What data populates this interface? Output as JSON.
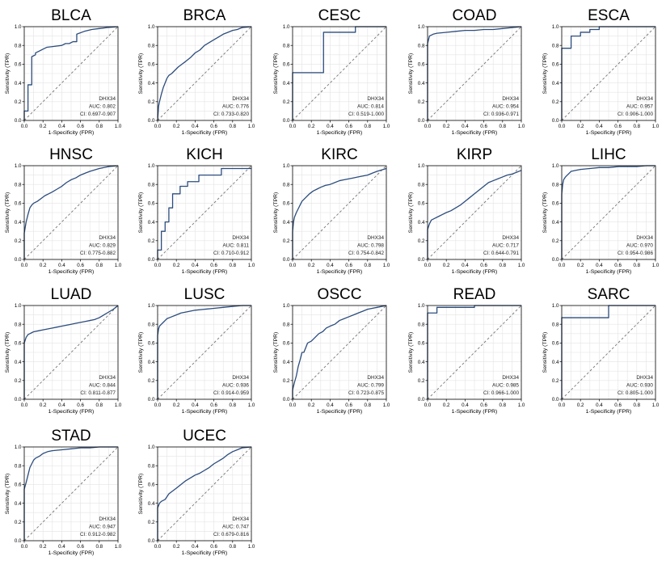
{
  "figure": {
    "axis_ticks": [
      "0.0",
      "0.2",
      "0.4",
      "0.6",
      "0.8",
      "1.0"
    ],
    "colors": {
      "roc": "#2b4c7e",
      "diagonal": "#777777",
      "grid": "#e4e4e4",
      "frame": "#000000"
    }
  },
  "chart_data": [
    {
      "type": "line",
      "title": "BLCA",
      "xlabel": "1-Specificity (FPR)",
      "ylabel": "Sensitivity (TPR)",
      "xlim": [
        0,
        1
      ],
      "ylim": [
        0,
        1
      ],
      "grid": true,
      "legend": [
        "DHX34",
        "AUC: 0.802",
        "CI: 0.697-0.907"
      ],
      "series": [
        {
          "name": "DHX34",
          "x": [
            0,
            0,
            0.04,
            0.04,
            0.08,
            0.08,
            0.12,
            0.12,
            0.16,
            0.2,
            0.24,
            0.32,
            0.4,
            0.44,
            0.48,
            0.52,
            0.56,
            0.56,
            0.64,
            0.72,
            0.8,
            0.88,
            1.0
          ],
          "y": [
            0,
            0.1,
            0.1,
            0.38,
            0.38,
            0.68,
            0.7,
            0.72,
            0.74,
            0.76,
            0.78,
            0.79,
            0.8,
            0.82,
            0.82,
            0.84,
            0.84,
            0.92,
            0.95,
            0.97,
            0.98,
            0.99,
            1.0
          ]
        }
      ]
    },
    {
      "type": "line",
      "title": "BRCA",
      "xlabel": "1-Specificity (FPR)",
      "ylabel": "Sensitivity (TPR)",
      "xlim": [
        0,
        1
      ],
      "ylim": [
        0,
        1
      ],
      "grid": true,
      "legend": [
        "DHX34",
        "AUC: 0.776",
        "CI: 0.733-0.820"
      ],
      "series": [
        {
          "name": "DHX34",
          "x": [
            0,
            0.01,
            0.02,
            0.04,
            0.06,
            0.08,
            0.1,
            0.12,
            0.15,
            0.18,
            0.22,
            0.26,
            0.3,
            0.35,
            0.4,
            0.45,
            0.5,
            0.55,
            0.6,
            0.65,
            0.7,
            0.75,
            0.8,
            0.85,
            0.9,
            1.0
          ],
          "y": [
            0,
            0.15,
            0.2,
            0.28,
            0.35,
            0.4,
            0.45,
            0.48,
            0.5,
            0.53,
            0.57,
            0.6,
            0.63,
            0.67,
            0.72,
            0.75,
            0.8,
            0.83,
            0.86,
            0.89,
            0.92,
            0.94,
            0.96,
            0.97,
            0.99,
            1.0
          ]
        }
      ]
    },
    {
      "type": "line",
      "title": "CESC",
      "xlabel": "1-Specificity (FPR)",
      "ylabel": "Sensitivity (TPR)",
      "xlim": [
        0,
        1
      ],
      "ylim": [
        0,
        1
      ],
      "grid": true,
      "legend": [
        "DHX34",
        "AUC: 0.814",
        "CI: 0.519-1.000"
      ],
      "series": [
        {
          "name": "DHX34",
          "x": [
            0,
            0,
            0.33,
            0.33,
            0.67,
            0.67,
            1.0
          ],
          "y": [
            0,
            0.51,
            0.51,
            0.94,
            0.94,
            1.0,
            1.0
          ]
        }
      ]
    },
    {
      "type": "line",
      "title": "COAD",
      "xlabel": "1-Specificity (FPR)",
      "ylabel": "Sensitivity (TPR)",
      "xlim": [
        0,
        1
      ],
      "ylim": [
        0,
        1
      ],
      "grid": true,
      "legend": [
        "DHX34",
        "AUC: 0.954",
        "CI: 0.936-0.971"
      ],
      "series": [
        {
          "name": "DHX34",
          "x": [
            0,
            0,
            0.01,
            0.02,
            0.04,
            0.06,
            0.1,
            0.2,
            0.3,
            0.4,
            0.5,
            0.6,
            0.7,
            0.8,
            0.9,
            1.0
          ],
          "y": [
            0,
            0.82,
            0.86,
            0.9,
            0.91,
            0.92,
            0.93,
            0.94,
            0.95,
            0.96,
            0.96,
            0.97,
            0.97,
            0.98,
            0.99,
            1.0
          ]
        }
      ]
    },
    {
      "type": "line",
      "title": "ESCA",
      "xlabel": "1-Specificity (FPR)",
      "ylabel": "Sensitivity (TPR)",
      "xlim": [
        0,
        1
      ],
      "ylim": [
        0,
        1
      ],
      "grid": true,
      "legend": [
        "DHX34",
        "AUC: 0.957",
        "CI: 0.906-1.000"
      ],
      "series": [
        {
          "name": "DHX34",
          "x": [
            0,
            0,
            0.1,
            0.1,
            0.2,
            0.2,
            0.3,
            0.3,
            0.4,
            0.4,
            1.0
          ],
          "y": [
            0,
            0.77,
            0.77,
            0.9,
            0.9,
            0.94,
            0.94,
            0.97,
            0.97,
            1.0,
            1.0
          ]
        }
      ]
    },
    {
      "type": "line",
      "title": "HNSC",
      "xlabel": "1-Specificity (FPR)",
      "ylabel": "Sensitivity (TPR)",
      "xlim": [
        0,
        1
      ],
      "ylim": [
        0,
        1
      ],
      "grid": true,
      "legend": [
        "DHX34",
        "AUC: 0.829",
        "CI: 0.775-0.882"
      ],
      "series": [
        {
          "name": "DHX34",
          "x": [
            0,
            0,
            0.02,
            0.04,
            0.06,
            0.08,
            0.1,
            0.14,
            0.18,
            0.22,
            0.26,
            0.3,
            0.35,
            0.4,
            0.45,
            0.5,
            0.55,
            0.6,
            0.65,
            0.7,
            0.8,
            0.9,
            1.0
          ],
          "y": [
            0,
            0.28,
            0.4,
            0.48,
            0.55,
            0.58,
            0.6,
            0.62,
            0.65,
            0.68,
            0.7,
            0.72,
            0.75,
            0.78,
            0.82,
            0.85,
            0.87,
            0.9,
            0.92,
            0.94,
            0.97,
            0.99,
            1.0
          ]
        }
      ]
    },
    {
      "type": "line",
      "title": "KICH",
      "xlabel": "1-Specificity (FPR)",
      "ylabel": "Sensitivity (TPR)",
      "xlim": [
        0,
        1
      ],
      "ylim": [
        0,
        1
      ],
      "grid": true,
      "legend": [
        "DHX34",
        "AUC: 0.811",
        "CI: 0.710-0.912"
      ],
      "series": [
        {
          "name": "DHX34",
          "x": [
            0,
            0,
            0.04,
            0.04,
            0.08,
            0.08,
            0.12,
            0.12,
            0.16,
            0.16,
            0.24,
            0.24,
            0.32,
            0.32,
            0.44,
            0.44,
            0.68,
            0.68,
            1.0
          ],
          "y": [
            0,
            0.1,
            0.1,
            0.3,
            0.3,
            0.4,
            0.4,
            0.55,
            0.55,
            0.7,
            0.7,
            0.78,
            0.78,
            0.83,
            0.83,
            0.9,
            0.9,
            0.97,
            0.97
          ]
        }
      ]
    },
    {
      "type": "line",
      "title": "KIRC",
      "xlabel": "1-Specificity (FPR)",
      "ylabel": "Sensitivity (TPR)",
      "xlim": [
        0,
        1
      ],
      "ylim": [
        0,
        1
      ],
      "grid": true,
      "legend": [
        "DHX34",
        "AUC: 0.798",
        "CI: 0.754-0.842"
      ],
      "series": [
        {
          "name": "DHX34",
          "x": [
            0,
            0,
            0.01,
            0.02,
            0.04,
            0.06,
            0.08,
            0.1,
            0.14,
            0.18,
            0.22,
            0.26,
            0.3,
            0.35,
            0.4,
            0.45,
            0.5,
            0.55,
            0.6,
            0.65,
            0.7,
            0.75,
            0.8,
            0.85,
            0.9,
            1.0
          ],
          "y": [
            0,
            0.3,
            0.4,
            0.45,
            0.5,
            0.54,
            0.58,
            0.62,
            0.66,
            0.7,
            0.73,
            0.75,
            0.77,
            0.79,
            0.8,
            0.82,
            0.84,
            0.85,
            0.86,
            0.87,
            0.88,
            0.89,
            0.9,
            0.92,
            0.94,
            0.97
          ]
        }
      ]
    },
    {
      "type": "line",
      "title": "KIRP",
      "xlabel": "1-Specificity (FPR)",
      "ylabel": "Sensitivity (TPR)",
      "xlim": [
        0,
        1
      ],
      "ylim": [
        0,
        1
      ],
      "grid": true,
      "legend": [
        "DHX34",
        "AUC: 0.717",
        "CI: 0.644-0.791"
      ],
      "series": [
        {
          "name": "DHX34",
          "x": [
            0,
            0,
            0.02,
            0.04,
            0.08,
            0.12,
            0.16,
            0.2,
            0.25,
            0.3,
            0.35,
            0.4,
            0.45,
            0.5,
            0.55,
            0.6,
            0.65,
            0.7,
            0.75,
            0.8,
            0.85,
            0.9,
            0.95,
            1.0
          ],
          "y": [
            0,
            0.32,
            0.38,
            0.42,
            0.44,
            0.46,
            0.48,
            0.5,
            0.52,
            0.55,
            0.58,
            0.62,
            0.66,
            0.7,
            0.74,
            0.78,
            0.82,
            0.84,
            0.86,
            0.88,
            0.9,
            0.91,
            0.93,
            0.95
          ]
        }
      ]
    },
    {
      "type": "line",
      "title": "LIHC",
      "xlabel": "1-Specificity (FPR)",
      "ylabel": "Sensitivity (TPR)",
      "xlim": [
        0,
        1
      ],
      "ylim": [
        0,
        1
      ],
      "grid": true,
      "legend": [
        "DHX34",
        "AUC: 0.970",
        "CI: 0.954-0.986"
      ],
      "series": [
        {
          "name": "DHX34",
          "x": [
            0,
            0,
            0.01,
            0.02,
            0.04,
            0.06,
            0.08,
            0.1,
            0.15,
            0.2,
            0.3,
            0.4,
            0.5,
            0.6,
            0.7,
            0.8,
            0.9,
            1.0
          ],
          "y": [
            0,
            0.7,
            0.8,
            0.85,
            0.88,
            0.9,
            0.92,
            0.94,
            0.95,
            0.96,
            0.97,
            0.98,
            0.98,
            0.99,
            0.99,
            0.99,
            1.0,
            1.0
          ]
        }
      ]
    },
    {
      "type": "line",
      "title": "LUAD",
      "xlabel": "1-Specificity (FPR)",
      "ylabel": "Sensitivity (TPR)",
      "xlim": [
        0,
        1
      ],
      "ylim": [
        0,
        1
      ],
      "grid": true,
      "legend": [
        "DHX34",
        "AUC: 0.844",
        "CI: 0.811-0.877"
      ],
      "series": [
        {
          "name": "DHX34",
          "x": [
            0,
            0,
            0.02,
            0.04,
            0.06,
            0.08,
            0.1,
            0.15,
            0.2,
            0.25,
            0.3,
            0.35,
            0.4,
            0.45,
            0.5,
            0.55,
            0.6,
            0.65,
            0.7,
            0.75,
            0.8,
            0.85,
            0.9,
            0.95,
            1.0
          ],
          "y": [
            0,
            0.6,
            0.66,
            0.69,
            0.7,
            0.71,
            0.72,
            0.73,
            0.74,
            0.75,
            0.76,
            0.77,
            0.78,
            0.79,
            0.8,
            0.81,
            0.82,
            0.83,
            0.84,
            0.85,
            0.87,
            0.9,
            0.93,
            0.96,
            1.0
          ]
        }
      ]
    },
    {
      "type": "line",
      "title": "LUSC",
      "xlabel": "1-Specificity (FPR)",
      "ylabel": "Sensitivity (TPR)",
      "xlim": [
        0,
        1
      ],
      "ylim": [
        0,
        1
      ],
      "grid": true,
      "legend": [
        "DHX34",
        "AUC: 0.936",
        "CI: 0.914-0.959"
      ],
      "series": [
        {
          "name": "DHX34",
          "x": [
            0,
            0,
            0.01,
            0.02,
            0.04,
            0.06,
            0.08,
            0.1,
            0.15,
            0.2,
            0.25,
            0.3,
            0.4,
            0.5,
            0.6,
            0.7,
            0.8,
            0.9,
            1.0
          ],
          "y": [
            0,
            0.68,
            0.75,
            0.78,
            0.8,
            0.82,
            0.84,
            0.86,
            0.88,
            0.9,
            0.92,
            0.93,
            0.95,
            0.96,
            0.97,
            0.98,
            0.99,
            1.0,
            1.0
          ]
        }
      ]
    },
    {
      "type": "line",
      "title": "OSCC",
      "xlabel": "1-Specificity (FPR)",
      "ylabel": "Sensitivity (TPR)",
      "xlim": [
        0,
        1
      ],
      "ylim": [
        0,
        1
      ],
      "grid": true,
      "legend": [
        "DHX34",
        "AUC: 0.799",
        "CI: 0.723-0.875"
      ],
      "series": [
        {
          "name": "DHX34",
          "x": [
            0,
            0,
            0.02,
            0.04,
            0.06,
            0.08,
            0.1,
            0.12,
            0.14,
            0.16,
            0.2,
            0.24,
            0.28,
            0.32,
            0.36,
            0.4,
            0.45,
            0.5,
            0.55,
            0.6,
            0.65,
            0.7,
            0.75,
            0.8,
            0.9,
            1.0
          ],
          "y": [
            0,
            0.1,
            0.18,
            0.25,
            0.35,
            0.42,
            0.5,
            0.5,
            0.55,
            0.6,
            0.62,
            0.66,
            0.7,
            0.72,
            0.76,
            0.78,
            0.8,
            0.84,
            0.86,
            0.88,
            0.9,
            0.92,
            0.94,
            0.96,
            0.98,
            1.0
          ]
        }
      ]
    },
    {
      "type": "line",
      "title": "READ",
      "xlabel": "1-Specificity (FPR)",
      "ylabel": "Sensitivity (TPR)",
      "xlim": [
        0,
        1
      ],
      "ylim": [
        0,
        1
      ],
      "grid": true,
      "legend": [
        "DHX34",
        "AUC: 0.985",
        "CI: 0.966-1.000"
      ],
      "series": [
        {
          "name": "DHX34",
          "x": [
            0,
            0,
            0.1,
            0.1,
            0.5,
            0.5,
            1.0
          ],
          "y": [
            0,
            0.92,
            0.92,
            0.98,
            0.98,
            1.0,
            1.0
          ]
        }
      ]
    },
    {
      "type": "line",
      "title": "SARC",
      "xlabel": "1-Specificity (FPR)",
      "ylabel": "Sensitivity (TPR)",
      "xlim": [
        0,
        1
      ],
      "ylim": [
        0,
        1
      ],
      "grid": true,
      "legend": [
        "DHX34",
        "AUC: 0.930",
        "CI: 0.805-1.000"
      ],
      "series": [
        {
          "name": "DHX34",
          "x": [
            0,
            0,
            0.5,
            0.5,
            1.0
          ],
          "y": [
            0,
            0.87,
            0.87,
            1.0,
            1.0
          ]
        }
      ]
    },
    {
      "type": "line",
      "title": "STAD",
      "xlabel": "1-Specificity (FPR)",
      "ylabel": "Sensitivity (TPR)",
      "xlim": [
        0,
        1
      ],
      "ylim": [
        0,
        1
      ],
      "grid": true,
      "legend": [
        "DHX34",
        "AUC: 0.947",
        "CI: 0.912-0.982"
      ],
      "series": [
        {
          "name": "DHX34",
          "x": [
            0,
            0,
            0.02,
            0.04,
            0.06,
            0.08,
            0.1,
            0.12,
            0.16,
            0.2,
            0.25,
            0.3,
            0.4,
            0.5,
            0.6,
            0.7,
            0.8,
            0.9,
            1.0
          ],
          "y": [
            0,
            0.55,
            0.62,
            0.7,
            0.78,
            0.82,
            0.86,
            0.88,
            0.9,
            0.93,
            0.95,
            0.96,
            0.97,
            0.98,
            0.99,
            0.99,
            1.0,
            1.0,
            1.0
          ]
        }
      ]
    },
    {
      "type": "line",
      "title": "UCEC",
      "xlabel": "1-Specificity (FPR)",
      "ylabel": "Sensitivity (TPR)",
      "xlim": [
        0,
        1
      ],
      "ylim": [
        0,
        1
      ],
      "grid": true,
      "legend": [
        "DHX34",
        "AUC: 0.747",
        "CI: 0.679-0.816"
      ],
      "series": [
        {
          "name": "DHX34",
          "x": [
            0,
            0,
            0.02,
            0.04,
            0.08,
            0.12,
            0.16,
            0.2,
            0.25,
            0.3,
            0.35,
            0.4,
            0.45,
            0.5,
            0.55,
            0.6,
            0.65,
            0.7,
            0.75,
            0.8,
            0.85,
            0.9,
            1.0
          ],
          "y": [
            0,
            0.35,
            0.4,
            0.42,
            0.44,
            0.5,
            0.53,
            0.56,
            0.6,
            0.64,
            0.67,
            0.7,
            0.72,
            0.75,
            0.78,
            0.82,
            0.85,
            0.88,
            0.92,
            0.95,
            0.97,
            0.99,
            1.0
          ]
        }
      ]
    }
  ]
}
